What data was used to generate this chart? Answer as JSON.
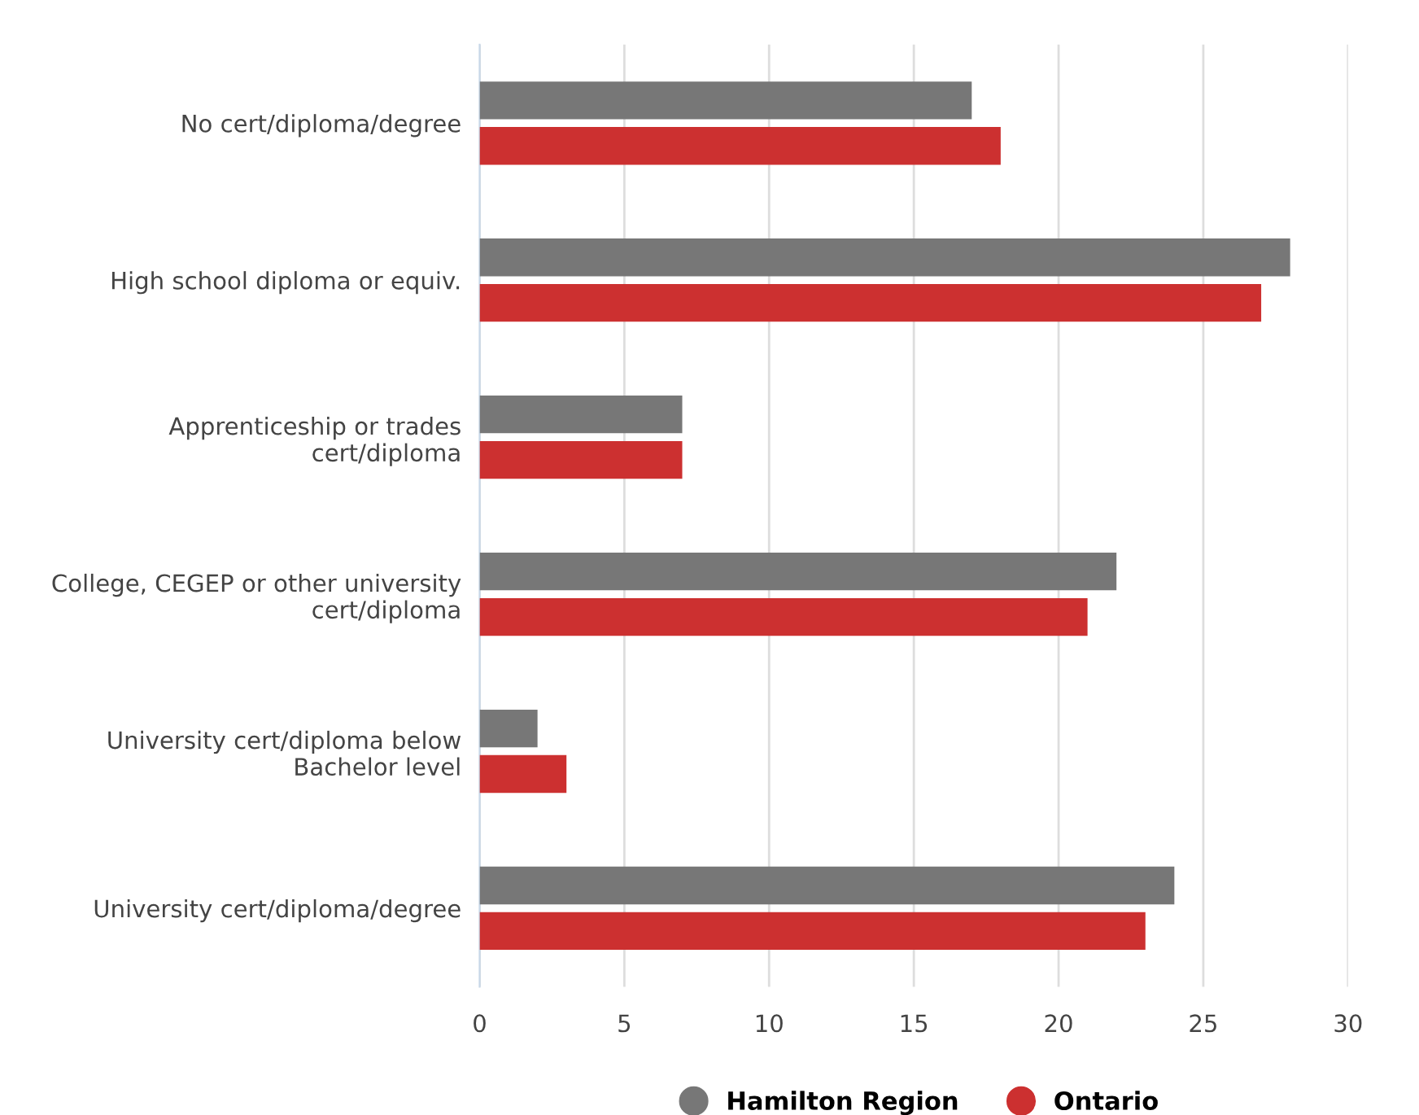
{
  "chart_data": {
    "type": "bar",
    "orientation": "horizontal",
    "categories": [
      "No cert/diploma/degree",
      "High school diploma or equiv.",
      "Apprenticeship or trades\ncert/diploma",
      "College, CEGEP or other university\ncert/diploma",
      "University cert/diploma below\nBachelor level",
      "University cert/diploma/degree"
    ],
    "series": [
      {
        "name": "Hamilton Region",
        "color": "#777777",
        "values": [
          17,
          28,
          7,
          22,
          2,
          24
        ]
      },
      {
        "name": "Ontario",
        "color": "#cc3030",
        "values": [
          18,
          27,
          7,
          21,
          3,
          23
        ]
      }
    ],
    "xlim": [
      0,
      30
    ],
    "xticks": [
      0,
      5,
      10,
      15,
      20,
      25,
      30
    ],
    "grid": "x",
    "legend": "bottom"
  }
}
